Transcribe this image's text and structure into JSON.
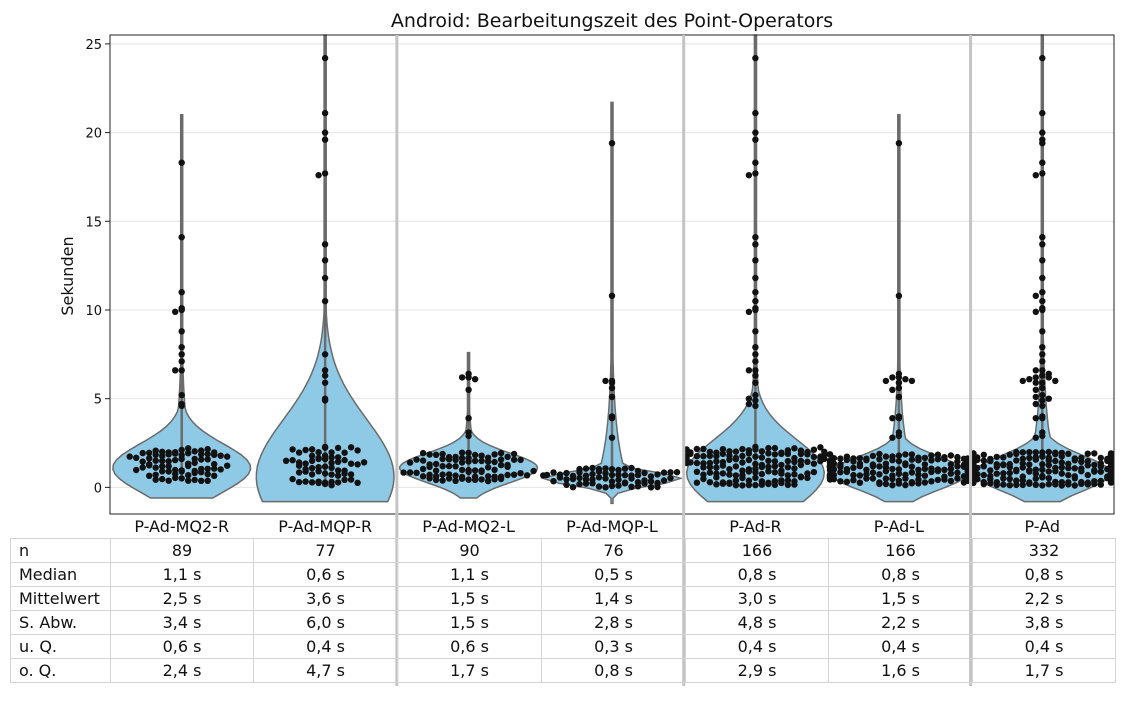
{
  "chart_data": {
    "type": "violin",
    "title": "Android: Bearbeitungszeit des Point-Operators",
    "ylabel": "Sekunden",
    "ylim": [
      -1.5,
      25.5
    ],
    "yticks": [
      "0",
      "5",
      "10",
      "15",
      "20",
      "25"
    ],
    "grid": true,
    "violin_color": "#8ecae6",
    "point_color": "#111111",
    "categories": [
      "P-Ad-MQ2-R",
      "P-Ad-MQP-R",
      "P-Ad-MQ2-L",
      "P-Ad-MQP-L",
      "P-Ad-R",
      "P-Ad-L",
      "P-Ad"
    ],
    "stats": {
      "row_labels": [
        "n",
        "Median",
        "Mittelwert",
        "S. Abw.",
        "u. Q.",
        "o. Q."
      ],
      "rows": [
        [
          "89",
          "77",
          "90",
          "76",
          "166",
          "166",
          "332"
        ],
        [
          "1,1 s",
          "0,6 s",
          "1,1 s",
          "0,5 s",
          "0,8 s",
          "0,8 s",
          "0,8 s"
        ],
        [
          "2,5 s",
          "3,6 s",
          "1,5 s",
          "1,4 s",
          "3,0 s",
          "1,5 s",
          "2,2 s"
        ],
        [
          "3,4 s",
          "6,0 s",
          "1,5 s",
          "2,8 s",
          "4,8 s",
          "2,2 s",
          "3,8 s"
        ],
        [
          "0,6 s",
          "0,4 s",
          "0,6 s",
          "0,3 s",
          "0,4 s",
          "0,4 s",
          "0,4 s"
        ],
        [
          "2,4 s",
          "4,7 s",
          "1,7 s",
          "0,8 s",
          "2,9 s",
          "1,6 s",
          "1,7 s"
        ]
      ]
    },
    "groups": [
      {
        "n": 89,
        "median": 1.1,
        "q1": 0.6,
        "q3": 2.4,
        "max": 21.0,
        "outliers": [
          18.3,
          14.1,
          11.0,
          10.1,
          10.0,
          9.9,
          8.8,
          7.9,
          7.5,
          7.1,
          6.6,
          6.6,
          5.2,
          4.7,
          4.6
        ]
      },
      {
        "n": 77,
        "median": 0.6,
        "q1": 0.4,
        "q3": 4.7,
        "max": 25.5,
        "outliers": [
          24.2,
          21.1,
          20.0,
          19.6,
          17.7,
          17.6,
          13.7,
          12.8,
          11.8,
          10.5,
          7.5,
          6.6,
          6.3,
          5.9,
          5.0,
          4.9
        ]
      },
      {
        "n": 90,
        "median": 1.1,
        "q1": 0.6,
        "q3": 1.7,
        "max": 7.6,
        "outliers": [
          6.4,
          6.2,
          6.2,
          6.1,
          5.5,
          3.9,
          3.1,
          2.9
        ]
      },
      {
        "n": 76,
        "median": 0.5,
        "q1": 0.3,
        "q3": 0.8,
        "max": 21.7,
        "outliers": [
          19.4,
          10.8,
          6.0,
          6.0,
          5.9,
          5.6,
          5.1,
          4.0,
          3.9,
          2.8
        ]
      },
      {
        "n": 166,
        "median": 0.8,
        "q1": 0.4,
        "q3": 2.9,
        "max": 25.5,
        "outliers": [
          24.2,
          21.1,
          20.0,
          19.6,
          18.3,
          17.7,
          17.6,
          14.1,
          13.7,
          12.8,
          11.8,
          11.0,
          10.5,
          10.1,
          10.0,
          9.9,
          8.8,
          7.9,
          7.5,
          7.1,
          6.6,
          6.6,
          6.3,
          5.9,
          5.2,
          5.0,
          4.9,
          4.7,
          4.6
        ]
      },
      {
        "n": 166,
        "median": 0.8,
        "q1": 0.4,
        "q3": 1.6,
        "max": 21.0,
        "outliers": [
          19.4,
          10.8,
          6.4,
          6.2,
          6.2,
          6.1,
          6.0,
          6.0,
          5.9,
          5.6,
          5.5,
          5.1,
          4.0,
          3.9,
          3.9,
          3.1,
          2.9,
          2.8
        ]
      },
      {
        "n": 332,
        "median": 0.8,
        "q1": 0.4,
        "q3": 1.7,
        "max": 25.5,
        "outliers": [
          24.2,
          21.1,
          20.0,
          19.6,
          19.4,
          18.3,
          17.7,
          17.6,
          14.1,
          13.7,
          12.8,
          11.8,
          11.0,
          10.8,
          10.5,
          10.1,
          10.0,
          9.9,
          8.8,
          7.9,
          7.5,
          7.1,
          6.6,
          6.6,
          6.4,
          6.3,
          6.2,
          6.2,
          6.1,
          6.0,
          6.0,
          5.9,
          5.9,
          5.6,
          5.5,
          5.2,
          5.1,
          5.0,
          4.9,
          4.7,
          4.6,
          4.0,
          3.9,
          3.9,
          3.1,
          2.9,
          2.8
        ]
      }
    ]
  }
}
